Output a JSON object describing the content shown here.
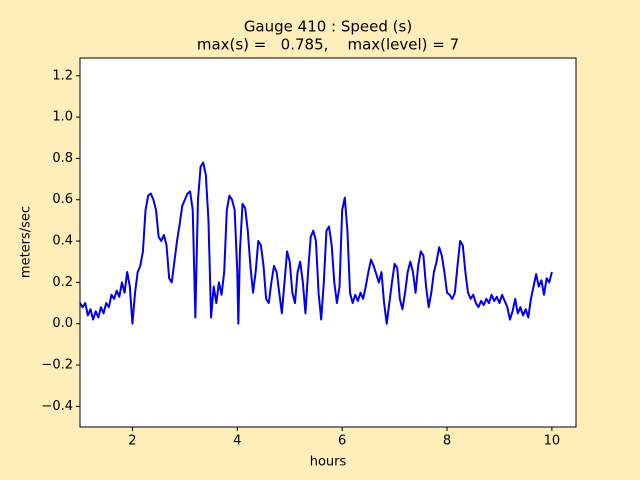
{
  "chart_data": {
    "type": "line",
    "title": "Gauge 410 : Speed (s)",
    "subtitle": "max(s) =   0.785,    max(level) = 7",
    "xlabel": "hours",
    "ylabel": "meters/sec",
    "xlim": [
      1,
      10.46
    ],
    "ylim": [
      -0.5,
      1.286
    ],
    "xticks": [
      2,
      4,
      6,
      8,
      10
    ],
    "yticks": [
      {
        "value": -0.4,
        "label": "−0.4"
      },
      {
        "value": -0.2,
        "label": "−0.2"
      },
      {
        "value": 0,
        "label": "0.0"
      },
      0.2,
      0.4,
      0.6,
      0.8,
      {
        "value": 1,
        "label": "1.0"
      },
      1.2
    ],
    "grid": false,
    "series": [
      {
        "color": "#0000ee",
        "x": [
          1.0,
          1.05,
          1.1,
          1.15,
          1.2,
          1.25,
          1.3,
          1.35,
          1.4,
          1.45,
          1.5,
          1.55,
          1.6,
          1.65,
          1.7,
          1.75,
          1.8,
          1.85,
          1.9,
          1.95,
          2.0,
          2.05,
          2.1,
          2.15,
          2.2,
          2.25,
          2.3,
          2.35,
          2.4,
          2.45,
          2.5,
          2.55,
          2.6,
          2.65,
          2.7,
          2.75,
          2.8,
          2.85,
          2.9,
          2.95,
          3.0,
          3.05,
          3.1,
          3.15,
          3.2,
          3.25,
          3.3,
          3.35,
          3.4,
          3.45,
          3.5,
          3.55,
          3.6,
          3.65,
          3.7,
          3.75,
          3.8,
          3.85,
          3.9,
          3.95,
          4.0,
          4.02,
          4.05,
          4.1,
          4.15,
          4.2,
          4.25,
          4.3,
          4.35,
          4.4,
          4.45,
          4.5,
          4.55,
          4.6,
          4.65,
          4.7,
          4.75,
          4.8,
          4.85,
          4.9,
          4.95,
          5.0,
          5.05,
          5.1,
          5.15,
          5.2,
          5.25,
          5.3,
          5.35,
          5.4,
          5.45,
          5.5,
          5.55,
          5.6,
          5.65,
          5.7,
          5.75,
          5.8,
          5.85,
          5.9,
          5.95,
          6.0,
          6.05,
          6.1,
          6.15,
          6.2,
          6.25,
          6.3,
          6.35,
          6.4,
          6.45,
          6.5,
          6.55,
          6.6,
          6.65,
          6.7,
          6.75,
          6.8,
          6.85,
          6.9,
          6.95,
          7.0,
          7.05,
          7.1,
          7.15,
          7.2,
          7.25,
          7.3,
          7.35,
          7.4,
          7.45,
          7.5,
          7.55,
          7.6,
          7.65,
          7.7,
          7.75,
          7.8,
          7.85,
          7.9,
          7.95,
          8.0,
          8.05,
          8.1,
          8.15,
          8.2,
          8.25,
          8.3,
          8.35,
          8.4,
          8.45,
          8.5,
          8.55,
          8.6,
          8.65,
          8.7,
          8.75,
          8.8,
          8.85,
          8.9,
          8.95,
          9.0,
          9.05,
          9.1,
          9.15,
          9.2,
          9.25,
          9.3,
          9.35,
          9.4,
          9.45,
          9.5,
          9.55,
          9.6,
          9.65,
          9.7,
          9.75,
          9.8,
          9.85,
          9.9,
          9.95,
          10.0
        ],
        "values": [
          0.1,
          0.08,
          0.1,
          0.04,
          0.07,
          0.02,
          0.06,
          0.03,
          0.08,
          0.05,
          0.1,
          0.08,
          0.14,
          0.12,
          0.16,
          0.13,
          0.2,
          0.15,
          0.25,
          0.18,
          0.0,
          0.15,
          0.25,
          0.28,
          0.35,
          0.55,
          0.62,
          0.63,
          0.6,
          0.55,
          0.42,
          0.4,
          0.43,
          0.38,
          0.22,
          0.2,
          0.3,
          0.4,
          0.48,
          0.57,
          0.6,
          0.63,
          0.64,
          0.55,
          0.03,
          0.6,
          0.76,
          0.78,
          0.72,
          0.5,
          0.03,
          0.18,
          0.1,
          0.2,
          0.14,
          0.25,
          0.55,
          0.62,
          0.6,
          0.55,
          0.25,
          0.0,
          0.35,
          0.58,
          0.56,
          0.45,
          0.28,
          0.15,
          0.25,
          0.4,
          0.38,
          0.28,
          0.12,
          0.1,
          0.2,
          0.28,
          0.25,
          0.15,
          0.05,
          0.2,
          0.35,
          0.3,
          0.15,
          0.1,
          0.25,
          0.3,
          0.2,
          0.05,
          0.25,
          0.42,
          0.45,
          0.4,
          0.15,
          0.02,
          0.2,
          0.45,
          0.47,
          0.38,
          0.2,
          0.1,
          0.18,
          0.55,
          0.61,
          0.45,
          0.15,
          0.1,
          0.14,
          0.11,
          0.15,
          0.12,
          0.18,
          0.25,
          0.31,
          0.28,
          0.24,
          0.2,
          0.25,
          0.1,
          0.0,
          0.1,
          0.2,
          0.29,
          0.27,
          0.12,
          0.07,
          0.15,
          0.25,
          0.3,
          0.25,
          0.15,
          0.28,
          0.35,
          0.33,
          0.18,
          0.08,
          0.15,
          0.25,
          0.3,
          0.37,
          0.33,
          0.25,
          0.15,
          0.14,
          0.12,
          0.15,
          0.28,
          0.4,
          0.38,
          0.25,
          0.15,
          0.12,
          0.14,
          0.1,
          0.08,
          0.11,
          0.09,
          0.12,
          0.1,
          0.14,
          0.11,
          0.13,
          0.1,
          0.14,
          0.11,
          0.08,
          0.02,
          0.06,
          0.12,
          0.05,
          0.08,
          0.04,
          0.07,
          0.03,
          0.12,
          0.18,
          0.24,
          0.18,
          0.21,
          0.14,
          0.22,
          0.2,
          0.25
        ]
      }
    ]
  }
}
